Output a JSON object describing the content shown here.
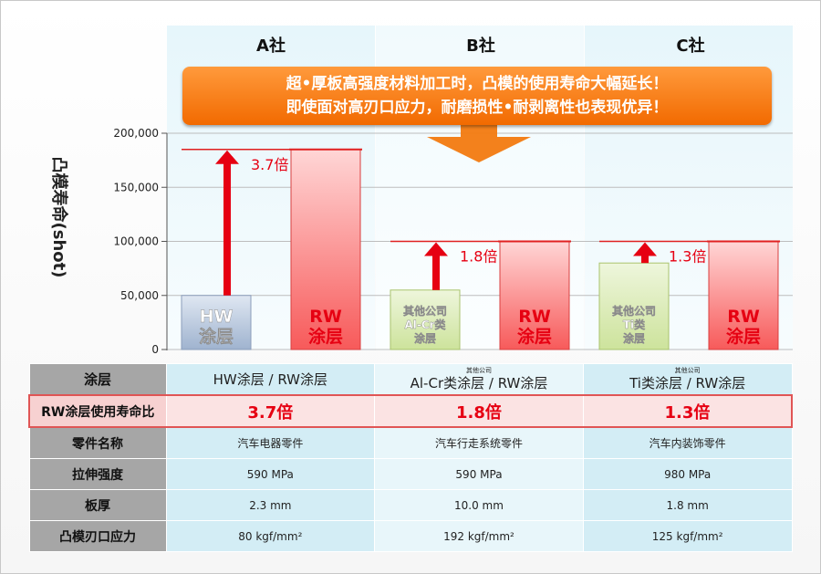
{
  "companies": [
    "A社",
    "B社",
    "C社"
  ],
  "banner": {
    "line1": "超•厚板高强度材料加工时，凸模的使用寿命大幅延长！",
    "line2": "即使面对高刃口应力，耐磨损性•耐剥离性也表现优异！"
  },
  "ylabel": "凸模寿命(shot)",
  "colors": {
    "rw": "#f75a5a",
    "hw": "#9fb3cf",
    "other": "#cde39c",
    "arrow": "#e60012",
    "banner": "#f27a10"
  },
  "chart_data": {
    "type": "bar",
    "ylabel": "凸模寿命(shot)",
    "ylim": [
      0,
      200000
    ],
    "ytick_values": [
      0,
      50000,
      100000,
      150000,
      200000
    ],
    "yticks": [
      "0",
      "50,000",
      "100,000",
      "150,000",
      "200,000"
    ],
    "grid": true,
    "groups": [
      {
        "company": "A社",
        "ratio_label": "3.7倍",
        "bars": [
          {
            "label": [
              "HW",
              "涂层"
            ],
            "value": 50000,
            "kind": "hw"
          },
          {
            "label": [
              "RW",
              "涂层"
            ],
            "value": 185000,
            "kind": "rw"
          }
        ]
      },
      {
        "company": "B社",
        "ratio_label": "1.8倍",
        "bars": [
          {
            "label": [
              "其他公司",
              "Al-Cr类",
              "涂层"
            ],
            "value": 55000,
            "kind": "other"
          },
          {
            "label": [
              "RW",
              "涂层"
            ],
            "value": 100000,
            "kind": "rw"
          }
        ]
      },
      {
        "company": "C社",
        "ratio_label": "1.3倍",
        "bars": [
          {
            "label": [
              "其他公司",
              "Ti类",
              "涂层"
            ],
            "value": 80000,
            "kind": "other"
          },
          {
            "label": [
              "RW",
              "涂层"
            ],
            "value": 100000,
            "kind": "rw"
          }
        ]
      }
    ]
  },
  "table": {
    "coating": {
      "header": "涂层",
      "cols": [
        {
          "small": "",
          "main": "HW涂层 / RW涂层"
        },
        {
          "small": "其他公司",
          "main": "Al-Cr类涂层 / RW涂层"
        },
        {
          "small": "其他公司",
          "main": "Ti类涂层 / RW涂层"
        }
      ]
    },
    "ratio": {
      "header": "RW涂层使用寿命比",
      "cols": [
        "3.7倍",
        "1.8倍",
        "1.3倍"
      ]
    },
    "part": {
      "header": "零件名称",
      "cols": [
        "汽车电器零件",
        "汽车行走系统零件",
        "汽车内装饰零件"
      ]
    },
    "strength": {
      "header": "拉伸强度",
      "cols": [
        "590 MPa",
        "590 MPa",
        "980 MPa"
      ]
    },
    "thickness": {
      "header": "板厚",
      "cols": [
        "2.3 mm",
        "10.0 mm",
        "1.8 mm"
      ]
    },
    "stress": {
      "header": "凸模刃口应力",
      "cols": [
        "80 kgf/mm²",
        "192 kgf/mm²",
        "125 kgf/mm²"
      ]
    }
  }
}
